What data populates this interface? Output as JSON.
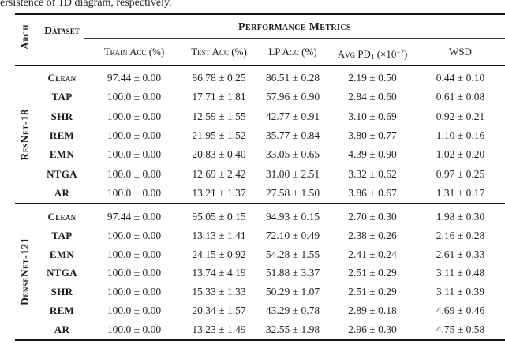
{
  "caption": "ersistence of 1D diagram, respectively.",
  "table": {
    "arch_header": "Arch",
    "dataset_header": "Dataset",
    "metrics_header": "Performance Metrics",
    "columns": [
      {
        "label": "Train Acc (%)"
      },
      {
        "label": "Test Acc (%)"
      },
      {
        "label": "LP Acc (%)"
      },
      {
        "prefix": "Avg PD",
        "sub": "1",
        "mid": " (×10",
        "sup": "−2",
        "suffix": ")"
      },
      {
        "label": "WSD"
      }
    ],
    "sections": [
      {
        "arch": "ResNet-18",
        "rows": [
          {
            "dataset": "Clean",
            "values": [
              "97.44 ± 0.00",
              "86.78 ± 0.25",
              "86.51 ± 0.28",
              "2.19 ± 0.50",
              "0.44 ± 0.10"
            ]
          },
          {
            "dataset": "TAP",
            "values": [
              "100.0 ± 0.00",
              "17.71 ± 1.81",
              "57.96 ± 0.90",
              "2.84 ± 0.60",
              "0.61 ± 0.08"
            ]
          },
          {
            "dataset": "SHR",
            "values": [
              "100.0 ± 0.00",
              "12.59 ± 1.55",
              "42.77 ± 0.91",
              "3.10 ± 0.69",
              "0.92 ± 0.21"
            ]
          },
          {
            "dataset": "REM",
            "values": [
              "100.0 ± 0.00",
              "21.95 ± 1.52",
              "35.77 ± 0.84",
              "3.80 ± 0.77",
              "1.10 ± 0.16"
            ]
          },
          {
            "dataset": "EMN",
            "values": [
              "100.0 ± 0.00",
              "20.83 ± 0.40",
              "33.05 ± 0.65",
              "4.39 ± 0.90",
              "1.02 ± 0.20"
            ]
          },
          {
            "dataset": "NTGA",
            "values": [
              "100.0 ± 0.00",
              "12.69 ± 2.42",
              "31.00 ± 2.51",
              "3.32 ± 0.62",
              "0.97 ± 0.25"
            ]
          },
          {
            "dataset": "AR",
            "values": [
              "100.0 ± 0.00",
              "13.21 ± 1.37",
              "27.58 ± 1.50",
              "3.86 ± 0.67",
              "1.31 ± 0.17"
            ]
          }
        ]
      },
      {
        "arch": "DenseNet-121",
        "rows": [
          {
            "dataset": "Clean",
            "values": [
              "97.44 ± 0.00",
              "95.05 ± 0.15",
              "94.93 ± 0.15",
              "2.70 ± 0.30",
              "1.98 ± 0.30"
            ]
          },
          {
            "dataset": "TAP",
            "values": [
              "100.0 ± 0.00",
              "13.13 ± 1.41",
              "72.10 ± 0.49",
              "2.38 ± 0.26",
              "2.16 ± 0.28"
            ]
          },
          {
            "dataset": "EMN",
            "values": [
              "100.0 ± 0.00",
              "24.15 ± 0.92",
              "54.28 ± 1.55",
              "2.41 ± 0.24",
              "2.61 ± 0.33"
            ]
          },
          {
            "dataset": "NTGA",
            "values": [
              "100.0 ± 0.00",
              "13.74 ± 4.19",
              "51.88 ± 3.37",
              "2.51 ± 0.29",
              "3.11 ± 0.48"
            ]
          },
          {
            "dataset": "SHR",
            "values": [
              "100.0 ± 0.00",
              "15.33 ± 1.33",
              "50.29 ± 1.07",
              "2.51 ± 0.29",
              "3.11 ± 0.39"
            ]
          },
          {
            "dataset": "REM",
            "values": [
              "100.0 ± 0.00",
              "20.34 ± 1.57",
              "43.29 ± 0.78",
              "2.89 ± 0.18",
              "4.69 ± 0.46"
            ]
          },
          {
            "dataset": "AR",
            "values": [
              "100.0 ± 0.00",
              "13.23 ± 1.49",
              "32.55 ± 1.98",
              "2.96 ± 0.30",
              "4.75 ± 0.58"
            ]
          }
        ]
      }
    ]
  },
  "colors": {
    "background": "#ffffff",
    "text": "#1b1b1b",
    "rule": "#151515"
  }
}
